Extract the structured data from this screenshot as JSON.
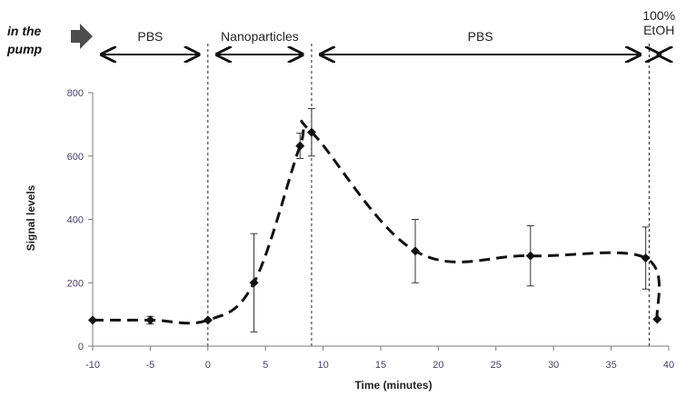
{
  "annotation": {
    "line1": "in the",
    "line2": "pump"
  },
  "phases": [
    {
      "lines": [
        "PBS"
      ],
      "from": -10,
      "to": 0
    },
    {
      "lines": [
        "Nanoparticles"
      ],
      "from": 0,
      "to": 9
    },
    {
      "lines": [
        "PBS"
      ],
      "from": 9,
      "to": 38.3
    },
    {
      "lines": [
        "100%",
        "EtOH"
      ],
      "from": 38.3,
      "to": 40
    }
  ],
  "chart_data": {
    "type": "scatter",
    "title": "",
    "xlabel": "Time (minutes)",
    "ylabel": "Signal levels",
    "xlim": [
      -10,
      40
    ],
    "ylim": [
      0,
      800
    ],
    "xticks": [
      -10,
      -5,
      0,
      5,
      10,
      15,
      20,
      25,
      30,
      35,
      40
    ],
    "yticks": [
      0,
      200,
      400,
      600,
      800
    ],
    "grid": false,
    "legend": "none",
    "phase_boundaries": [
      0,
      9,
      38.3
    ],
    "points": [
      {
        "x": -10,
        "y": 82,
        "err": 0
      },
      {
        "x": -5,
        "y": 82,
        "err": 12
      },
      {
        "x": 0,
        "y": 82,
        "err": 0
      },
      {
        "x": 4,
        "y": 200,
        "err": 155
      },
      {
        "x": 8,
        "y": 632,
        "err": 40
      },
      {
        "x": 9,
        "y": 675,
        "err": 75
      },
      {
        "x": 18,
        "y": 300,
        "err": 100
      },
      {
        "x": 28,
        "y": 285,
        "err": 95
      },
      {
        "x": 38,
        "y": 278,
        "err": 98
      },
      {
        "x": 39,
        "y": 85,
        "err": 0
      }
    ],
    "colors": {
      "marker": "#111111",
      "line": "#111111",
      "axis": "#777777"
    }
  }
}
